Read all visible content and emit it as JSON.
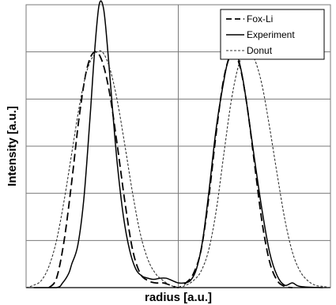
{
  "chart_data": {
    "type": "line",
    "title": "",
    "xlabel": "radius [a.u.]",
    "ylabel": "Intensity [a.u.]",
    "xlim": [
      -1,
      1
    ],
    "ylim": [
      0,
      1.2
    ],
    "grid": true,
    "legend_position": "top-right",
    "series": [
      {
        "name": "Fox-Li",
        "style": "long-dash",
        "color": "#000000",
        "x": [
          -0.85,
          -0.8,
          -0.75,
          -0.7,
          -0.65,
          -0.6,
          -0.55,
          -0.5,
          -0.45,
          -0.4,
          -0.35,
          -0.3,
          -0.25,
          -0.2,
          -0.15,
          -0.1,
          -0.05,
          0.0,
          0.05,
          0.1,
          0.15,
          0.2,
          0.25,
          0.3,
          0.35,
          0.4,
          0.45,
          0.5,
          0.55,
          0.6,
          0.65,
          0.7,
          0.75
        ],
        "y": [
          0.0,
          0.04,
          0.2,
          0.45,
          0.73,
          0.93,
          1.0,
          0.96,
          0.82,
          0.6,
          0.36,
          0.16,
          0.06,
          0.03,
          0.02,
          0.02,
          0.01,
          0.0,
          0.02,
          0.06,
          0.16,
          0.38,
          0.66,
          0.89,
          0.99,
          0.95,
          0.78,
          0.53,
          0.28,
          0.11,
          0.03,
          0.005,
          0.0
        ]
      },
      {
        "name": "Experiment",
        "style": "solid",
        "color": "#000000",
        "x": [
          -0.95,
          -0.8,
          -0.76,
          -0.72,
          -0.7,
          -0.66,
          -0.62,
          -0.58,
          -0.55,
          -0.52,
          -0.49,
          -0.46,
          -0.43,
          -0.4,
          -0.36,
          -0.32,
          -0.28,
          -0.24,
          -0.2,
          -0.16,
          -0.12,
          -0.08,
          -0.04,
          0.0,
          0.04,
          0.08,
          0.12,
          0.16,
          0.2,
          0.25,
          0.3,
          0.33,
          0.36,
          0.39,
          0.42,
          0.45,
          0.5,
          0.55,
          0.6,
          0.65,
          0.7,
          0.75,
          0.8,
          0.95
        ],
        "y": [
          0.0,
          0.0,
          0.02,
          0.06,
          0.1,
          0.18,
          0.38,
          0.72,
          1.0,
          1.2,
          1.18,
          0.98,
          0.74,
          0.52,
          0.3,
          0.16,
          0.08,
          0.05,
          0.04,
          0.035,
          0.04,
          0.04,
          0.03,
          0.02,
          0.02,
          0.03,
          0.08,
          0.2,
          0.4,
          0.68,
          0.88,
          0.97,
          1.0,
          0.98,
          0.9,
          0.78,
          0.55,
          0.33,
          0.15,
          0.05,
          0.01,
          0.02,
          0.005,
          0.0
        ]
      },
      {
        "name": "Donut",
        "style": "short-dash",
        "color": "#333333",
        "x": [
          -1.0,
          -0.95,
          -0.9,
          -0.85,
          -0.8,
          -0.75,
          -0.7,
          -0.65,
          -0.6,
          -0.55,
          -0.5,
          -0.45,
          -0.4,
          -0.35,
          -0.3,
          -0.25,
          -0.2,
          -0.15,
          -0.1,
          -0.05,
          0.0,
          0.05,
          0.1,
          0.15,
          0.2,
          0.25,
          0.3,
          0.35,
          0.4,
          0.45,
          0.5,
          0.55,
          0.6,
          0.65,
          0.7,
          0.75,
          0.8,
          0.85,
          0.9,
          0.95,
          1.0
        ],
        "y": [
          0.0,
          0.01,
          0.03,
          0.09,
          0.2,
          0.37,
          0.57,
          0.77,
          0.92,
          0.99,
          1.0,
          0.93,
          0.79,
          0.6,
          0.4,
          0.23,
          0.12,
          0.06,
          0.03,
          0.01,
          0.0,
          0.01,
          0.03,
          0.07,
          0.16,
          0.33,
          0.57,
          0.8,
          0.95,
          1.0,
          0.97,
          0.86,
          0.68,
          0.48,
          0.29,
          0.15,
          0.07,
          0.03,
          0.01,
          0.005,
          0.0
        ]
      }
    ]
  }
}
